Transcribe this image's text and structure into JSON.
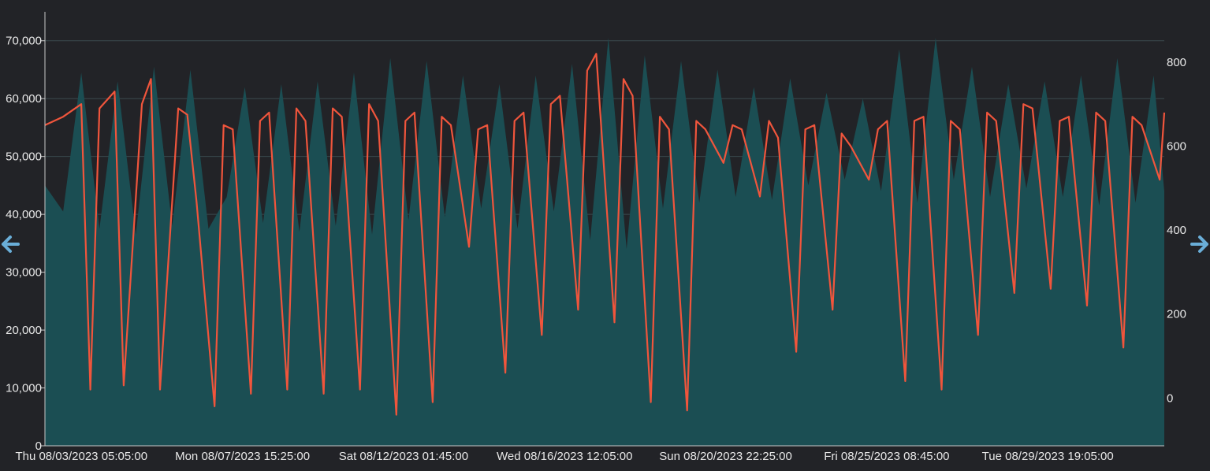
{
  "colors": {
    "background": "#222327",
    "area_fill": "#1b4e53",
    "line": "#f0553c",
    "grid": "#3a4a4e",
    "axis": "#c8c8c8",
    "nav_arrow": "#6aaed8"
  },
  "navigation": {
    "left_icon": "arrow-left-icon",
    "right_icon": "arrow-right-icon"
  },
  "chart_data": {
    "type": "area",
    "title": "",
    "xlabel": "",
    "ylabel": "",
    "grid": true,
    "x_tick_labels": [
      "Thu 08/03/2023 05:05:00",
      "Mon 08/07/2023 15:25:00",
      "Sat 08/12/2023 01:45:00",
      "Wed 08/16/2023 12:05:00",
      "Sun 08/20/2023 22:25:00",
      "Fri 08/25/2023 08:45:00",
      "Tue 08/29/2023 19:05:00"
    ],
    "x_tick_dates": [
      "2023-08-03T05:05:00",
      "2023-08-07T15:25:00",
      "2023-08-12T01:45:00",
      "2023-08-16T12:05:00",
      "2023-08-20T22:25:00",
      "2023-08-25T08:45:00",
      "2023-08-29T19:05:00"
    ],
    "x_range": [
      "2023-08-02T05:00:00",
      "2023-09-02T00:00:00"
    ],
    "y_left": {
      "ticks": [
        "0",
        "10,000",
        "20,000",
        "30,000",
        "40,000",
        "50,000",
        "60,000",
        "70,000"
      ],
      "tick_values": [
        0,
        10000,
        20000,
        30000,
        40000,
        50000,
        60000,
        70000
      ],
      "range": [
        0,
        75000
      ]
    },
    "y_right": {
      "ticks": [
        "0",
        "200",
        "400",
        "600",
        "800"
      ],
      "tick_values": [
        0,
        200,
        400,
        600,
        800
      ],
      "range": [
        -114,
        920
      ]
    },
    "series": [
      {
        "axis": "left",
        "kind": "area",
        "x": [
          "2023-08-02T05:00",
          "2023-08-02T17:00",
          "2023-08-03T05:00",
          "2023-08-03T17:00",
          "2023-08-04T05:00",
          "2023-08-04T17:00",
          "2023-08-05T05:00",
          "2023-08-05T17:00",
          "2023-08-06T05:00",
          "2023-08-06T17:00",
          "2023-08-07T05:00",
          "2023-08-07T17:00",
          "2023-08-08T05:00",
          "2023-08-08T17:00",
          "2023-08-09T05:00",
          "2023-08-09T17:00",
          "2023-08-10T05:00",
          "2023-08-10T17:00",
          "2023-08-11T05:00",
          "2023-08-11T17:00",
          "2023-08-12T05:00",
          "2023-08-12T17:00",
          "2023-08-13T05:00",
          "2023-08-13T17:00",
          "2023-08-14T05:00",
          "2023-08-14T17:00",
          "2023-08-15T05:00",
          "2023-08-15T17:00",
          "2023-08-16T05:00",
          "2023-08-16T17:00",
          "2023-08-17T05:00",
          "2023-08-17T17:00",
          "2023-08-18T05:00",
          "2023-08-18T17:00",
          "2023-08-19T05:00",
          "2023-08-19T17:00",
          "2023-08-20T05:00",
          "2023-08-20T17:00",
          "2023-08-21T05:00",
          "2023-08-21T17:00",
          "2023-08-22T05:00",
          "2023-08-22T17:00",
          "2023-08-23T05:00",
          "2023-08-23T17:00",
          "2023-08-24T05:00",
          "2023-08-24T17:00",
          "2023-08-25T05:00",
          "2023-08-25T17:00",
          "2023-08-26T05:00",
          "2023-08-26T17:00",
          "2023-08-27T05:00",
          "2023-08-27T17:00",
          "2023-08-28T05:00",
          "2023-08-28T17:00",
          "2023-08-29T05:00",
          "2023-08-29T17:00",
          "2023-08-30T05:00",
          "2023-08-30T17:00",
          "2023-08-31T05:00",
          "2023-08-31T17:00",
          "2023-09-01T05:00",
          "2023-09-01T17:00",
          "2023-09-02T00:00"
        ],
        "values": [
          45000,
          40500,
          64500,
          37500,
          63000,
          36500,
          65500,
          38000,
          65000,
          37500,
          43000,
          62000,
          38500,
          62500,
          37000,
          63000,
          38000,
          64500,
          36500,
          67000,
          39000,
          66500,
          39500,
          64000,
          41000,
          62500,
          37500,
          64000,
          40500,
          66000,
          35500,
          70500,
          34000,
          67500,
          41000,
          66500,
          42000,
          65000,
          43000,
          62000,
          42500,
          63500,
          45000,
          61000,
          46000,
          60000,
          44000,
          68500,
          42000,
          70500,
          46000,
          65500,
          43000,
          62500,
          44500,
          63000,
          43000,
          64000,
          41500,
          67000,
          42000,
          64000,
          44000
        ]
      },
      {
        "axis": "right",
        "kind": "line",
        "x": [
          "2023-08-02T05:00",
          "2023-08-02T17:00",
          "2023-08-03T05:00",
          "2023-08-03T11:00",
          "2023-08-03T17:00",
          "2023-08-04T03:00",
          "2023-08-04T09:00",
          "2023-08-04T21:00",
          "2023-08-05T03:00",
          "2023-08-05T09:00",
          "2023-08-05T21:00",
          "2023-08-06T03:00",
          "2023-08-06T09:00",
          "2023-08-06T21:00",
          "2023-08-07T03:00",
          "2023-08-07T09:00",
          "2023-08-07T21:00",
          "2023-08-08T03:00",
          "2023-08-08T09:00",
          "2023-08-08T21:00",
          "2023-08-09T03:00",
          "2023-08-09T09:00",
          "2023-08-09T21:00",
          "2023-08-10T03:00",
          "2023-08-10T09:00",
          "2023-08-10T21:00",
          "2023-08-11T03:00",
          "2023-08-11T09:00",
          "2023-08-11T21:00",
          "2023-08-12T03:00",
          "2023-08-12T09:00",
          "2023-08-12T21:00",
          "2023-08-13T03:00",
          "2023-08-13T09:00",
          "2023-08-13T21:00",
          "2023-08-14T03:00",
          "2023-08-14T09:00",
          "2023-08-14T21:00",
          "2023-08-15T03:00",
          "2023-08-15T09:00",
          "2023-08-15T21:00",
          "2023-08-16T03:00",
          "2023-08-16T09:00",
          "2023-08-16T21:00",
          "2023-08-17T03:00",
          "2023-08-17T09:00",
          "2023-08-17T21:00",
          "2023-08-18T03:00",
          "2023-08-18T09:00",
          "2023-08-18T21:00",
          "2023-08-19T03:00",
          "2023-08-19T09:00",
          "2023-08-19T21:00",
          "2023-08-20T03:00",
          "2023-08-20T09:00",
          "2023-08-20T21:00",
          "2023-08-21T03:00",
          "2023-08-21T09:00",
          "2023-08-21T21:00",
          "2023-08-22T03:00",
          "2023-08-22T09:00",
          "2023-08-22T21:00",
          "2023-08-23T03:00",
          "2023-08-23T09:00",
          "2023-08-23T21:00",
          "2023-08-24T03:00",
          "2023-08-24T09:00",
          "2023-08-24T21:00",
          "2023-08-25T03:00",
          "2023-08-25T09:00",
          "2023-08-25T21:00",
          "2023-08-26T03:00",
          "2023-08-26T09:00",
          "2023-08-26T21:00",
          "2023-08-27T03:00",
          "2023-08-27T09:00",
          "2023-08-27T21:00",
          "2023-08-28T03:00",
          "2023-08-28T09:00",
          "2023-08-28T21:00",
          "2023-08-29T03:00",
          "2023-08-29T09:00",
          "2023-08-29T21:00",
          "2023-08-30T03:00",
          "2023-08-30T09:00",
          "2023-08-30T21:00",
          "2023-08-31T03:00",
          "2023-08-31T09:00",
          "2023-08-31T21:00",
          "2023-09-01T03:00",
          "2023-09-01T09:00",
          "2023-09-01T21:00",
          "2023-09-02T00:00"
        ],
        "values": [
          650,
          670,
          700,
          20,
          690,
          730,
          30,
          700,
          760,
          20,
          690,
          675,
          470,
          -20,
          650,
          640,
          10,
          660,
          680,
          20,
          690,
          660,
          10,
          690,
          670,
          20,
          700,
          660,
          -40,
          660,
          680,
          -10,
          670,
          650,
          360,
          640,
          650,
          60,
          660,
          680,
          150,
          700,
          720,
          210,
          780,
          820,
          180,
          760,
          720,
          -10,
          670,
          640,
          -30,
          660,
          640,
          560,
          650,
          640,
          480,
          660,
          620,
          110,
          640,
          650,
          210,
          630,
          600,
          520,
          640,
          660,
          40,
          660,
          670,
          20,
          660,
          640,
          150,
          680,
          660,
          250,
          700,
          690,
          260,
          660,
          670,
          220,
          680,
          660,
          120,
          670,
          650,
          520,
          680
        ]
      }
    ]
  }
}
